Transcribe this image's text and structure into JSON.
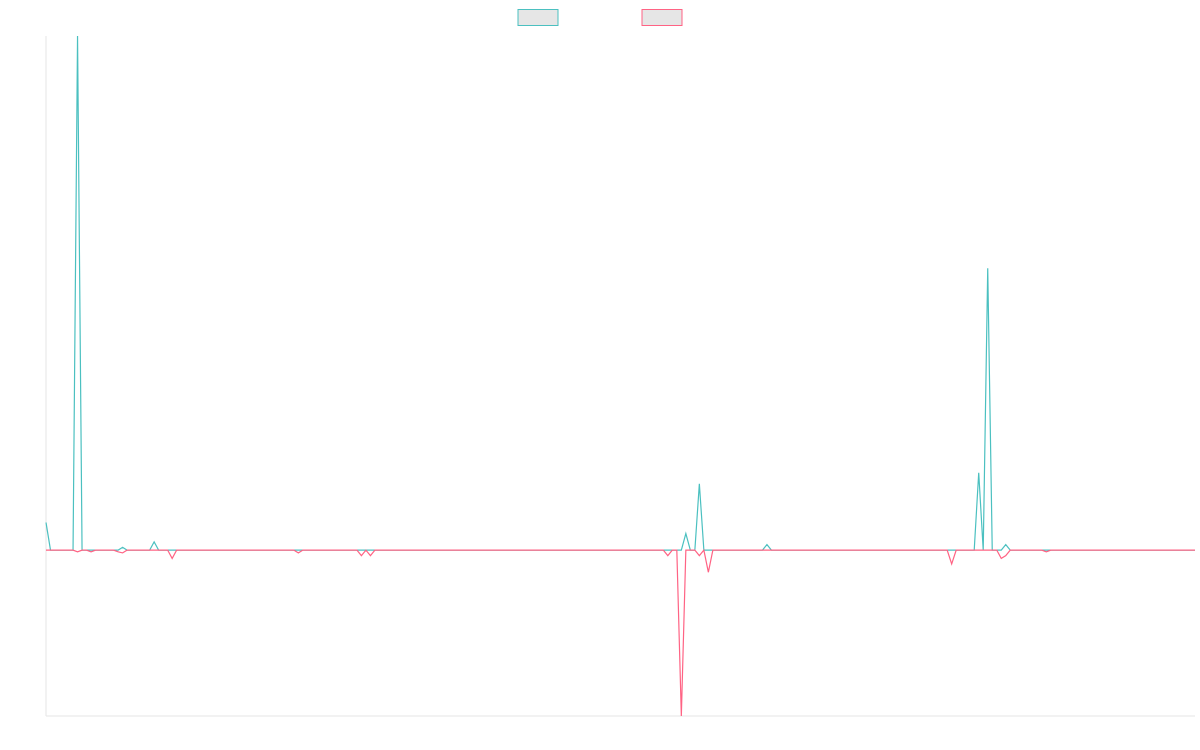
{
  "chart_data": {
    "type": "line",
    "title": "",
    "xlabel": "",
    "ylabel": "",
    "legend": {
      "placement": "top-center",
      "items": [
        {
          "name": "",
          "stroke": "#4bc0c0",
          "fill": "#e6e6e6"
        },
        {
          "name": "",
          "stroke": "#ff6384",
          "fill": "#e6e6e6"
        }
      ]
    },
    "grid": false,
    "x_count": 256,
    "ylim": [
      -30,
      93
    ],
    "series": [
      {
        "name": "",
        "color": "#4bc0c0",
        "sparse_values": [
          [
            0,
            5
          ],
          [
            7,
            93
          ],
          [
            17,
            0.5
          ],
          [
            24,
            1.5
          ],
          [
            142,
            3
          ],
          [
            145,
            12
          ],
          [
            160,
            1
          ],
          [
            207,
            14
          ],
          [
            209,
            51
          ],
          [
            213,
            1
          ]
        ],
        "default": 0
      },
      {
        "name": "",
        "color": "#ff6384",
        "sparse_values": [
          [
            7,
            -0.3
          ],
          [
            10,
            -0.3
          ],
          [
            16,
            -0.3
          ],
          [
            17,
            -0.5
          ],
          [
            28,
            -1.5
          ],
          [
            56,
            -0.5
          ],
          [
            70,
            -1
          ],
          [
            72,
            -1
          ],
          [
            138,
            -1
          ],
          [
            141,
            -30
          ],
          [
            145,
            -1
          ],
          [
            147,
            -4
          ],
          [
            201,
            -2.5
          ],
          [
            212,
            -1.5
          ],
          [
            213,
            -1
          ],
          [
            222,
            -0.3
          ]
        ],
        "default": 0
      }
    ]
  }
}
